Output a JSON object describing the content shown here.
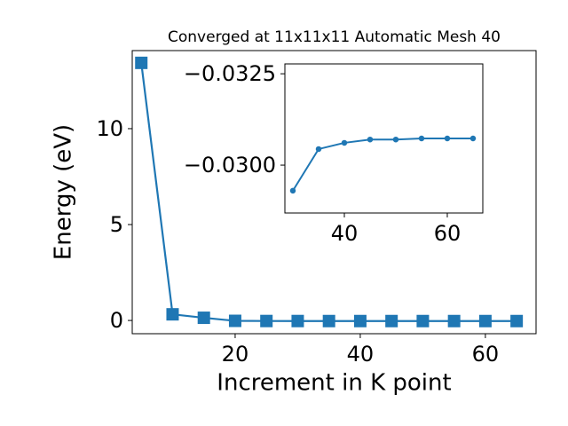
{
  "chart_data": [
    {
      "type": "line",
      "title": "Converged at 11x11x11 Automatic Mesh 40",
      "xlabel": "Increment in K point",
      "ylabel": "Energy (eV)",
      "x": [
        5,
        10,
        15,
        20,
        25,
        30,
        35,
        40,
        45,
        50,
        55,
        60,
        65
      ],
      "series": [
        {
          "color": "#1f77b4",
          "marker": "square",
          "values": [
            13.43,
            0.32,
            0.14,
            -0.02,
            -0.028,
            -0.0293,
            -0.03044,
            -0.03061,
            -0.0307,
            -0.0307,
            -0.03073,
            -0.03073,
            -0.03073
          ]
        }
      ],
      "xlim": [
        3.55,
        68.1
      ],
      "ylim": [
        -0.69,
        14.07
      ],
      "xticks": [
        20,
        40,
        60
      ],
      "yticks": [
        0,
        5,
        10
      ]
    },
    {
      "type": "line",
      "x": [
        30,
        35,
        40,
        45,
        50,
        55,
        60,
        65
      ],
      "series": [
        {
          "color": "#1f77b4",
          "marker": "circle",
          "values": [
            -0.0293,
            -0.03044,
            -0.03061,
            -0.0307,
            -0.0307,
            -0.03073,
            -0.03073,
            -0.03073
          ]
        }
      ],
      "xlim": [
        28.45,
        66.9
      ],
      "ylim": [
        -0.02869,
        -0.03277
      ],
      "xticks": [
        40,
        60
      ],
      "yticks": [
        {
          "value": -0.0325,
          "label": "−0.0325"
        },
        {
          "value": -0.03,
          "label": "−0.0300"
        }
      ]
    }
  ]
}
